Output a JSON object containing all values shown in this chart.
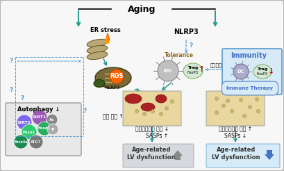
{
  "title": "Aging",
  "teal": "#2a9d8f",
  "blue": "#4472c4",
  "dashed_color": "#5599cc",
  "red_color": "#cc0000",
  "question_color": "#5599cc",
  "korean_remove_left": "노화심근세포 제거 ↓",
  "korean_remove_right": "노화심근세포 제거 ↑",
  "sasps_up": "SASPs ↑",
  "sasps_down": "SASPs ↓",
  "age_lv_text": "Age-related\nLV dysfunction",
  "immune_therapy": "Immune Therapy",
  "myocardial_aging": "심근 노화 ↑",
  "immune_modulation": "면역관물",
  "autophagy_label": "Autophagy ↓",
  "tolerance_label": "Tolerance",
  "immunity_label": "Immunity",
  "nlrp3_label": "NLRP3",
  "er_stress_label": "ER stress",
  "ros_label": "ROS",
  "nlrp3_small": "NLRP3",
  "treg": "Treg",
  "foxp3": "FoxP3",
  "idc": "iDC",
  "dc": "DC"
}
